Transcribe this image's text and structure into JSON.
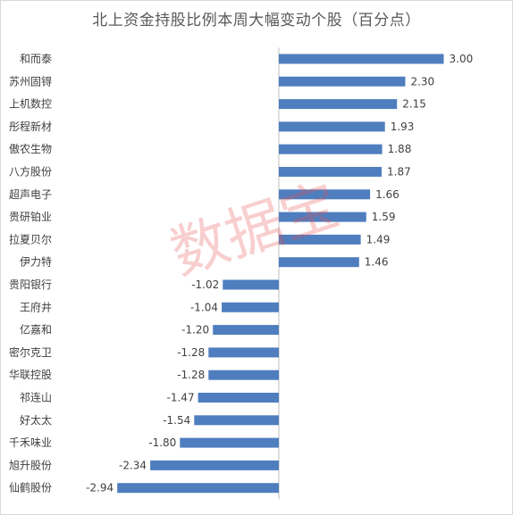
{
  "chart_data": {
    "type": "bar",
    "orientation": "horizontal",
    "title": "北上资金持股比例本周大幅变动个股（百分点）",
    "categories": [
      "和而泰",
      "苏州固锝",
      "上机数控",
      "彤程新材",
      "傲农生物",
      "八方股份",
      "超声电子",
      "贵研铂业",
      "拉夏贝尔",
      "伊力特",
      "贵阳银行",
      "王府井",
      "亿嘉和",
      "密尔克卫",
      "华联控股",
      "祁连山",
      "好太太",
      "千禾味业",
      "旭升股份",
      "仙鹤股份"
    ],
    "values": [
      3.0,
      2.3,
      2.15,
      1.93,
      1.88,
      1.87,
      1.66,
      1.59,
      1.49,
      1.46,
      -1.02,
      -1.04,
      -1.2,
      -1.28,
      -1.28,
      -1.47,
      -1.54,
      -1.8,
      -2.34,
      -2.94
    ],
    "value_labels": [
      "3.00",
      "2.30",
      "2.15",
      "1.93",
      "1.88",
      "1.87",
      "1.66",
      "1.59",
      "1.49",
      "1.46",
      "-1.02",
      "-1.04",
      "-1.20",
      "-1.28",
      "-1.28",
      "-1.47",
      "-1.54",
      "-1.80",
      "-2.34",
      "-2.94"
    ],
    "xlim": [
      -3.5,
      3.5
    ],
    "grid": false,
    "legend": "none",
    "bar_color": "#4f7ebf"
  },
  "watermark": "数据宝"
}
